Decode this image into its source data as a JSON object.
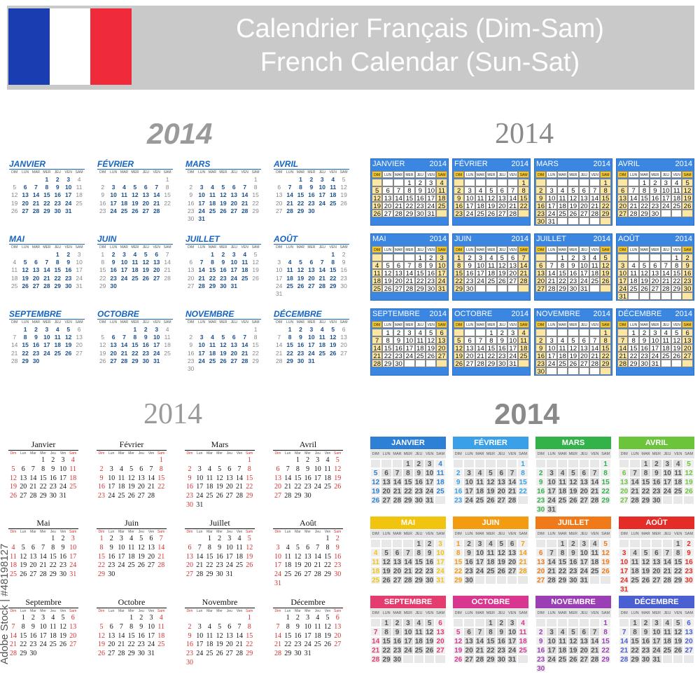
{
  "header": {
    "title_fr": "Calendrier Français (Dim-Sam)",
    "title_en": "French Calendar (Sun-Sat)",
    "flag_colors": [
      "#1a3eb1",
      "#ffffff",
      "#ef2a3b"
    ]
  },
  "year": "2014",
  "day_headers_short": [
    "DIM",
    "LUN",
    "MAR",
    "MER",
    "JEU",
    "VEN",
    "SAM"
  ],
  "day_headers_title": [
    "Dim",
    "Lun",
    "Mar",
    "Mer",
    "Jeu",
    "Ven",
    "Sam"
  ],
  "months_upper": [
    "JANVIER",
    "FÉVRIER",
    "MARS",
    "AVRIL",
    "MAI",
    "JUIN",
    "JUILLET",
    "AOÛT",
    "SEPTEMBRE",
    "OCTOBRE",
    "NOVEMBRE",
    "DÉCEMBRE"
  ],
  "months_title": [
    "Janvier",
    "Février",
    "Mars",
    "Avril",
    "Mai",
    "Juin",
    "Juillet",
    "Août",
    "Septembre",
    "Octobre",
    "Novembre",
    "Décembre"
  ],
  "month_start_weekday": [
    3,
    6,
    6,
    2,
    4,
    0,
    2,
    5,
    1,
    3,
    6,
    1
  ],
  "month_days": [
    31,
    28,
    31,
    30,
    31,
    30,
    31,
    31,
    30,
    31,
    30,
    31
  ],
  "style4_colors": [
    "#2e7fd6",
    "#3aa0e8",
    "#33b24a",
    "#6cc43b",
    "#f1c40f",
    "#f39c12",
    "#f07a1a",
    "#e52d27",
    "#e43c6f",
    "#d9378f",
    "#9b3fb5",
    "#4a5fd1"
  ],
  "watermark": "Adobe Stock | #48198127"
}
